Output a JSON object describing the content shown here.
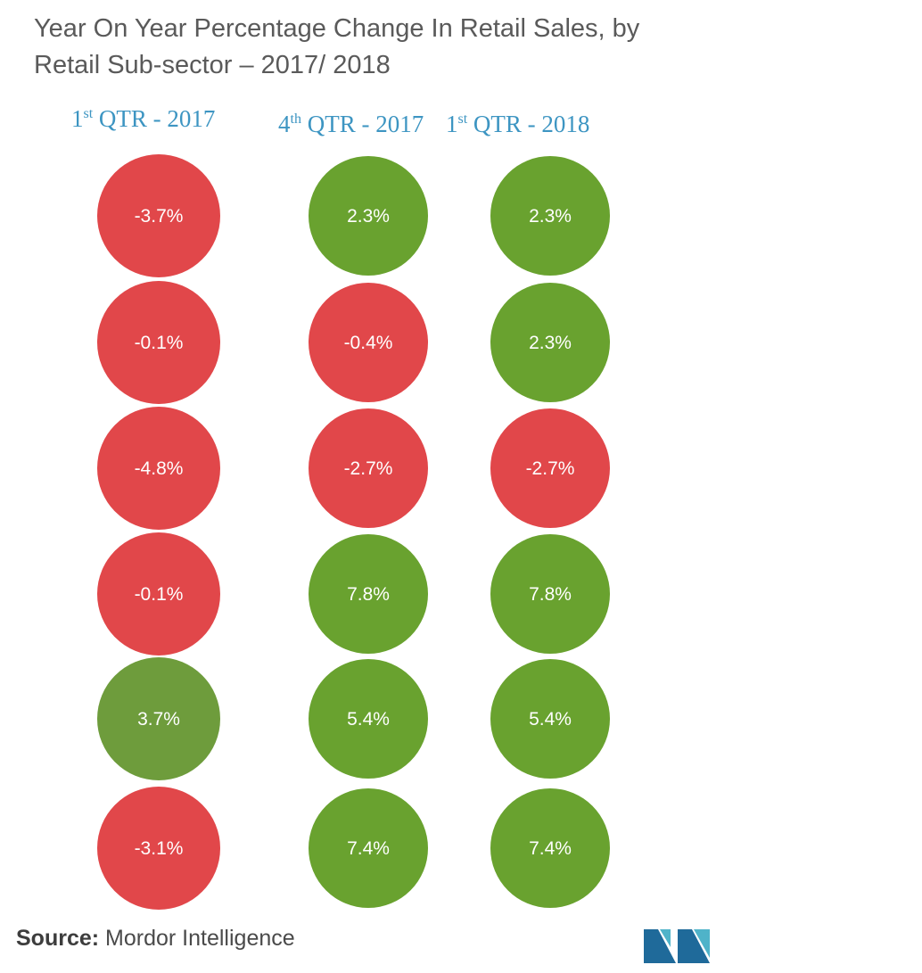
{
  "title": "Year On Year Percentage Change In Retail Sales, by Retail Sub-sector – 2017/ 2018",
  "columns": [
    {
      "ordinal": "1",
      "suffix": "st",
      "rest": "QTR - 2017"
    },
    {
      "ordinal": "4",
      "suffix": "th",
      "rest": "QTR - 2017"
    },
    {
      "ordinal": "1",
      "suffix": "st",
      "rest": "QTR - 2018"
    }
  ],
  "chart_data": {
    "type": "bubble-grid",
    "title": "Year On Year Percentage Change In Retail Sales, by Retail Sub-sector – 2017/ 2018",
    "series": [
      {
        "name": "1st QTR - 2017",
        "values": [
          -3.7,
          -0.1,
          -4.8,
          -0.1,
          3.7,
          -3.1
        ],
        "labels": [
          "-3.7%",
          "-0.1%",
          "-4.8%",
          "-0.1%",
          "3.7%",
          "-3.1%"
        ]
      },
      {
        "name": "4th QTR - 2017",
        "values": [
          2.3,
          -0.4,
          -2.7,
          7.8,
          5.4,
          7.4
        ],
        "labels": [
          "2.3%",
          "-0.4%",
          "-2.7%",
          "7.8%",
          "5.4%",
          "7.4%"
        ]
      },
      {
        "name": "1st QTR - 2018",
        "values": [
          2.3,
          2.3,
          -2.7,
          7.8,
          5.4,
          7.4
        ],
        "labels": [
          "2.3%",
          "2.3%",
          "-2.7%",
          "7.8%",
          "5.4%",
          "7.4%"
        ]
      }
    ],
    "colors": {
      "negative": "#e1474a",
      "positive": "#69a22f",
      "positive_muted": "#6e9c3c"
    }
  },
  "source": {
    "label": "Source:",
    "text": "Mordor Intelligence"
  }
}
